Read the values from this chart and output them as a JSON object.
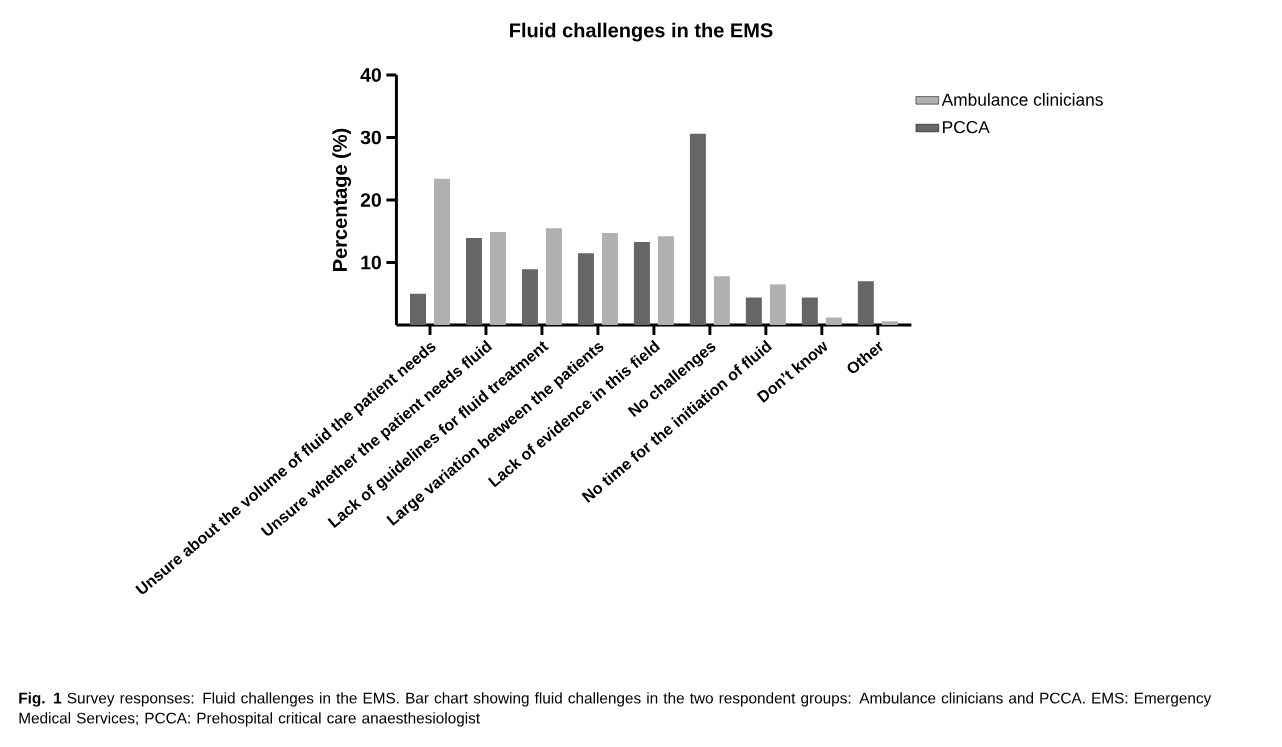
{
  "chart_data": {
    "type": "bar",
    "title": "Fluid challenges in the EMS",
    "ylabel": "Percentage (%)",
    "categories": [
      "Unsure about the volume of fluid the patient needs",
      "Unsure whether the patient needs fluid",
      "Lack of guidelines for fluid treatment",
      "Large variation between the patients",
      "Lack of evidence in this field",
      "No challenges",
      "No time for the initiation of fluid",
      "Don’t know",
      "Other"
    ],
    "series": [
      {
        "name": "PCCA",
        "color": "#666666",
        "values": [
          5.0,
          13.9,
          8.9,
          11.5,
          13.3,
          30.6,
          4.4,
          4.4,
          7.0
        ]
      },
      {
        "name": "Ambulance clinicians",
        "color": "#b0b0b0",
        "values": [
          23.4,
          14.9,
          15.5,
          14.7,
          14.2,
          7.8,
          6.5,
          1.2,
          0.6
        ]
      }
    ],
    "ylim": [
      0,
      40
    ],
    "yticks": [
      10,
      20,
      30,
      40
    ],
    "legend": "top right",
    "annotations": [
      "**Fig. 1** Survey responses: Fluid challenges in the EMS. Bar chart showing fluid challenges in the two respondent groups: Ambulance clinicians and PCCA. EMS: Emergency Medical Services; PCCA: Prehospital critical care anaesthesiologist"
    ]
  }
}
